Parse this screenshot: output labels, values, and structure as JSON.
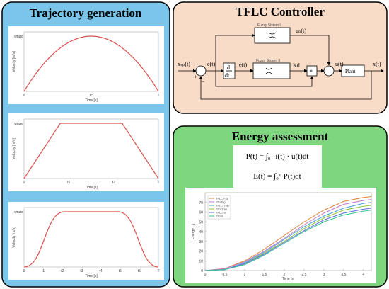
{
  "trajectory": {
    "title": "Trajectory generation",
    "plots": [
      {
        "y_label": "Velocity [m/s]",
        "x_label": "Time [s]",
        "y_tick": "vmax",
        "x_ticks": [
          "0",
          "tc",
          "T"
        ]
      },
      {
        "y_label": "Velocity [m/s]",
        "x_label": "Time [s]",
        "y_tick": "vmax",
        "x_ticks": [
          "0",
          "t1",
          "t2",
          "T"
        ]
      },
      {
        "y_label": "Velocity [m/s]",
        "x_label": "Time [s]",
        "y_tick": "vmax",
        "x_ticks": [
          "0",
          "t1",
          "t2",
          "t3",
          "t4",
          "t5",
          "t6",
          "T"
        ]
      }
    ]
  },
  "controller": {
    "title": "TFLC Controller",
    "input": "xₛₚ(t)",
    "error": "e(t)",
    "d": "d",
    "dt": "dt",
    "error_rate": "ė(t)",
    "fuzzy1": "Fuzzy Sistem I",
    "fuzzy2": "Fuzzy Sistem II",
    "up": "uₚ(t)",
    "kd": "Kd",
    "mult": "*",
    "u": "u(t)",
    "plant": "Plant",
    "output": "x(t)"
  },
  "energy": {
    "title": "Energy assessment",
    "equations": [
      "P(t) = ∫₀ᵀ i(t) · u(t)dt",
      "E(t) = ∫₀ᵀ P(t)dt"
    ]
  },
  "chart_data": {
    "type": "line",
    "x_label": "Time [s]",
    "y_label": "Energy [J]",
    "x": [
      0,
      0.5,
      1,
      1.5,
      2,
      2.5,
      3,
      3.5,
      4,
      4.2
    ],
    "xlim": [
      0,
      4.2
    ],
    "ylim": [
      0,
      80
    ],
    "xticks": [
      0,
      0.5,
      1,
      1.5,
      2,
      2.5,
      3,
      3.5,
      4
    ],
    "yticks": [
      0,
      10,
      20,
      30,
      40,
      50,
      60,
      70
    ],
    "legend": "top-left",
    "series": [
      {
        "name": "TFLC-Fig",
        "color": "#d9823b",
        "values": [
          0,
          2,
          10,
          22,
          36,
          50,
          62,
          71,
          75,
          76
        ]
      },
      {
        "name": "PID-Fig",
        "color": "#c07ac4",
        "values": [
          0,
          2,
          9,
          20,
          33,
          47,
          59,
          68,
          72,
          73
        ]
      },
      {
        "name": "TFLC-Trap",
        "color": "#4aa3d8",
        "values": [
          0,
          1,
          8,
          19,
          32,
          45,
          56,
          64,
          69,
          70
        ]
      },
      {
        "name": "PID-Trap",
        "color": "#8fc33a",
        "values": [
          0,
          1,
          7,
          18,
          30,
          43,
          54,
          62,
          66,
          67
        ]
      },
      {
        "name": "TFLC-S",
        "color": "#5b6fd6",
        "values": [
          0,
          1,
          7,
          17,
          29,
          41,
          52,
          59,
          63,
          64
        ]
      },
      {
        "name": "PID-S",
        "color": "#3fbf9a",
        "values": [
          0,
          1,
          6,
          16,
          28,
          40,
          50,
          57,
          61,
          62
        ]
      }
    ]
  }
}
